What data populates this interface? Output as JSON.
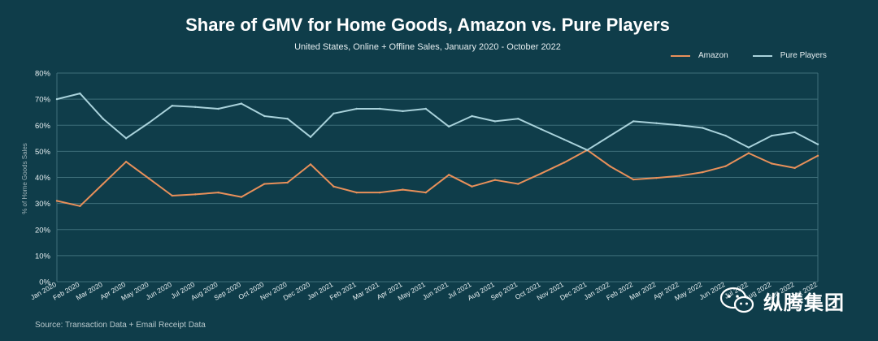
{
  "header": {
    "title": "Share of GMV for Home Goods, Amazon vs. Pure Players",
    "subtitle": "United States, Online + Offline Sales, January 2020 - October 2022"
  },
  "footer": {
    "source": "Source: Transaction Data + Email Receipt Data"
  },
  "watermark": {
    "text": "纵腾集团",
    "icon": "wechat-icon"
  },
  "colors": {
    "background": "#0f3d4a",
    "grid": "#3f6f7a",
    "amazon": "#e8905a",
    "pure": "#a9d2db",
    "text": "#e6eef0"
  },
  "chart_data": {
    "type": "line",
    "title": "Share of GMV for Home Goods, Amazon vs. Pure Players",
    "subtitle": "United States, Online + Offline Sales, January 2020 - October 2022",
    "xlabel": "",
    "ylabel": "% of Home Goods Sales",
    "ylim": [
      0,
      80
    ],
    "yticks": [
      "0%",
      "10%",
      "20%",
      "30%",
      "40%",
      "50%",
      "60%",
      "70%",
      "80%"
    ],
    "grid": true,
    "legend_position": "top-right",
    "categories": [
      "Jan 2020",
      "Feb 2020",
      "Mar 2020",
      "Apr 2020",
      "May 2020",
      "Jun 2020",
      "Jul 2020",
      "Aug 2020",
      "Sep 2020",
      "Oct 2020",
      "Nov 2020",
      "Dec 2020",
      "Jan 2021",
      "Feb 2021",
      "Mar 2021",
      "Apr 2021",
      "May 2021",
      "Jun 2021",
      "Jul 2021",
      "Aug 2021",
      "Sep 2021",
      "Oct 2021",
      "Nov 2021",
      "Dec 2021",
      "Jan 2022",
      "Feb 2022",
      "Mar 2022",
      "Apr 2022",
      "May 2022",
      "Jun 2022",
      "Jul 2022",
      "Aug 2022",
      "Sep 2022",
      "Oct 2022"
    ],
    "series": [
      {
        "name": "Amazon",
        "color": "#e8905a",
        "values": [
          31,
          29,
          37.5,
          46,
          39.5,
          33,
          33.5,
          34.2,
          32.5,
          37.5,
          38,
          45,
          36.5,
          34.2,
          34.2,
          35.3,
          34.2,
          41,
          36.5,
          39,
          37.5,
          41.5,
          45.7,
          50.5,
          44.2,
          39.2,
          39.8,
          40.6,
          42,
          44.3,
          49.3,
          45.3,
          43.6,
          48.3
        ]
      },
      {
        "name": "Pure Players",
        "color": "#a9d2db",
        "values": [
          70,
          72.2,
          62.5,
          55,
          61,
          67.5,
          67,
          66.3,
          68.3,
          63.5,
          62.5,
          55.5,
          64.5,
          66.3,
          66.3,
          65.4,
          66.3,
          59.5,
          63.5,
          61.5,
          62.5,
          58.5,
          54.5,
          50.5,
          56,
          61.5,
          60.8,
          60,
          59,
          56,
          51.5,
          56,
          57.3,
          52.7
        ]
      }
    ]
  }
}
